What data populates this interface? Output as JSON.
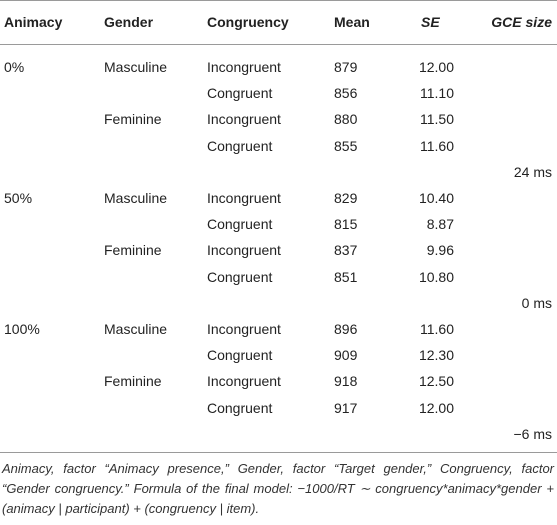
{
  "table": {
    "header": [
      "Animacy",
      "Gender",
      "Congruency",
      "Mean",
      "SE",
      "GCE size"
    ],
    "groups": [
      {
        "animacy": "0%",
        "gce": "24 ms",
        "genders": [
          {
            "name": "Masculine",
            "rows": [
              {
                "congruency": "Incongruent",
                "mean": 879,
                "se": "12.00"
              },
              {
                "congruency": "Congruent",
                "mean": 856,
                "se": "11.10"
              }
            ]
          },
          {
            "name": "Feminine",
            "rows": [
              {
                "congruency": "Incongruent",
                "mean": 880,
                "se": "11.50"
              },
              {
                "congruency": "Congruent",
                "mean": 855,
                "se": "11.60"
              }
            ]
          }
        ]
      },
      {
        "animacy": "50%",
        "gce": "0 ms",
        "genders": [
          {
            "name": "Masculine",
            "rows": [
              {
                "congruency": "Incongruent",
                "mean": 829,
                "se": "10.40"
              },
              {
                "congruency": "Congruent",
                "mean": 815,
                "se": "8.87"
              }
            ]
          },
          {
            "name": "Feminine",
            "rows": [
              {
                "congruency": "Incongruent",
                "mean": 837,
                "se": "9.96"
              },
              {
                "congruency": "Congruent",
                "mean": 851,
                "se": "10.80"
              }
            ]
          }
        ]
      },
      {
        "animacy": "100%",
        "gce": "−6 ms",
        "genders": [
          {
            "name": "Masculine",
            "rows": [
              {
                "congruency": "Incongruent",
                "mean": 896,
                "se": "11.60"
              },
              {
                "congruency": "Congruent",
                "mean": 909,
                "se": "12.30"
              }
            ]
          },
          {
            "name": "Feminine",
            "rows": [
              {
                "congruency": "Incongruent",
                "mean": 918,
                "se": "12.50"
              },
              {
                "congruency": "Congruent",
                "mean": 917,
                "se": "12.00"
              }
            ]
          }
        ]
      }
    ]
  },
  "footnote": "Animacy, factor “Animacy presence,” Gender, factor “Target gender,” Congruency, factor “Gender congruency.” Formula of the final model: −1000/RT ∼ congruency*animacy*gender + (animacy | participant) + (congruency | item)."
}
